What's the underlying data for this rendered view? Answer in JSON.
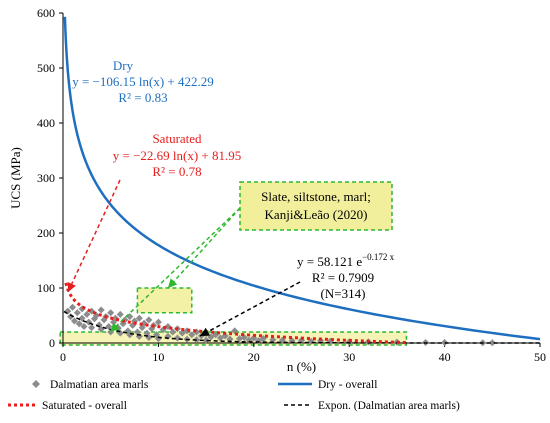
{
  "chart_data": {
    "type": "scatter",
    "xlabel": "n (%)",
    "ylabel": "UCS (MPa)",
    "xlim": [
      0,
      50
    ],
    "ylim": [
      0,
      600
    ],
    "xticks": [
      0,
      10,
      20,
      30,
      40,
      50
    ],
    "yticks": [
      0,
      100,
      200,
      300,
      400,
      500,
      600
    ],
    "colors": {
      "dry": "#1f6fc0",
      "saturated": "#e81d1d",
      "expon": "#000000",
      "scatter": "#8c8c8c",
      "box_fill": "#f2ef9c",
      "box_stroke": "#2db82d"
    },
    "dry_fit": {
      "a": -106.15,
      "b": 422.29
    },
    "saturated_fit": {
      "a": -22.69,
      "b": 81.95
    },
    "expon_fit": {
      "a": 58.121,
      "k": -0.172
    },
    "annotations": {
      "dry_title": "Dry",
      "dry_eq": "y = −106.15 ln(x) + 422.29",
      "dry_r2": "R² = 0.83",
      "sat_title": "Saturated",
      "sat_eq": "y = −22.69 ln(x) + 81.95",
      "sat_r2": "R² = 0.78",
      "box_line1": "Slate, siltstone, marl;",
      "box_line2": "Kanji&Leão (2020)",
      "exp_eq_base": "y = 58.121 e",
      "exp_eq_exp": "−0.172 x",
      "exp_r2": "R² = 0.7909",
      "exp_n": "(N=314)"
    },
    "legend": {
      "scatter": "Dalmatian area marls",
      "dry": "Dry - overall",
      "saturated": "Saturated - overall",
      "expon": "Expon. (Dalmatian area marls)"
    },
    "scatter_points": [
      [
        0.5,
        58
      ],
      [
        0.8,
        48
      ],
      [
        1.0,
        65
      ],
      [
        1.2,
        40
      ],
      [
        1.5,
        55
      ],
      [
        1.7,
        35
      ],
      [
        2.0,
        62
      ],
      [
        2.0,
        45
      ],
      [
        2.2,
        30
      ],
      [
        2.5,
        52
      ],
      [
        2.7,
        38
      ],
      [
        3.0,
        58
      ],
      [
        3.0,
        28
      ],
      [
        3.3,
        44
      ],
      [
        3.5,
        50
      ],
      [
        3.8,
        33
      ],
      [
        4.0,
        60
      ],
      [
        4.0,
        25
      ],
      [
        4.3,
        42
      ],
      [
        4.5,
        48
      ],
      [
        4.8,
        30
      ],
      [
        5.0,
        55
      ],
      [
        5.0,
        20
      ],
      [
        5.3,
        38
      ],
      [
        5.5,
        45
      ],
      [
        5.8,
        27
      ],
      [
        6.0,
        52
      ],
      [
        6.0,
        18
      ],
      [
        6.3,
        35
      ],
      [
        6.5,
        42
      ],
      [
        6.8,
        22
      ],
      [
        7.0,
        48
      ],
      [
        7.0,
        15
      ],
      [
        7.3,
        32
      ],
      [
        7.5,
        40
      ],
      [
        7.8,
        20
      ],
      [
        8.0,
        45
      ],
      [
        8.0,
        12
      ],
      [
        8.3,
        28
      ],
      [
        8.5,
        36
      ],
      [
        8.8,
        18
      ],
      [
        9.0,
        42
      ],
      [
        9.0,
        10
      ],
      [
        9.3,
        26
      ],
      [
        9.5,
        32
      ],
      [
        9.8,
        15
      ],
      [
        10.0,
        38
      ],
      [
        10.0,
        8
      ],
      [
        10.5,
        24
      ],
      [
        11.0,
        30
      ],
      [
        11.0,
        12
      ],
      [
        11.5,
        20
      ],
      [
        12.0,
        26
      ],
      [
        12.0,
        9
      ],
      [
        12.5,
        18
      ],
      [
        13.0,
        22
      ],
      [
        13.0,
        7
      ],
      [
        13.5,
        15
      ],
      [
        14.0,
        20
      ],
      [
        14.0,
        6
      ],
      [
        14.5,
        13
      ],
      [
        15.0,
        17
      ],
      [
        15.0,
        5
      ],
      [
        15.5,
        11
      ],
      [
        16.0,
        15
      ],
      [
        16.5,
        9
      ],
      [
        17.0,
        13
      ],
      [
        17.5,
        7
      ],
      [
        18.0,
        22
      ],
      [
        18.5,
        8
      ],
      [
        19.0,
        10
      ],
      [
        19.5,
        5
      ],
      [
        20.0,
        9
      ],
      [
        20.5,
        4
      ],
      [
        21.0,
        8
      ],
      [
        22.0,
        6
      ],
      [
        23.0,
        5
      ],
      [
        24.0,
        4
      ],
      [
        25.0,
        5
      ],
      [
        26.0,
        3
      ],
      [
        27.0,
        4
      ],
      [
        28.0,
        3
      ],
      [
        30.0,
        2
      ],
      [
        32.0,
        2
      ],
      [
        35.0,
        1.5
      ],
      [
        38.0,
        1
      ],
      [
        40.0,
        1
      ],
      [
        44.0,
        0.5
      ],
      [
        45.0,
        0.5
      ]
    ]
  }
}
